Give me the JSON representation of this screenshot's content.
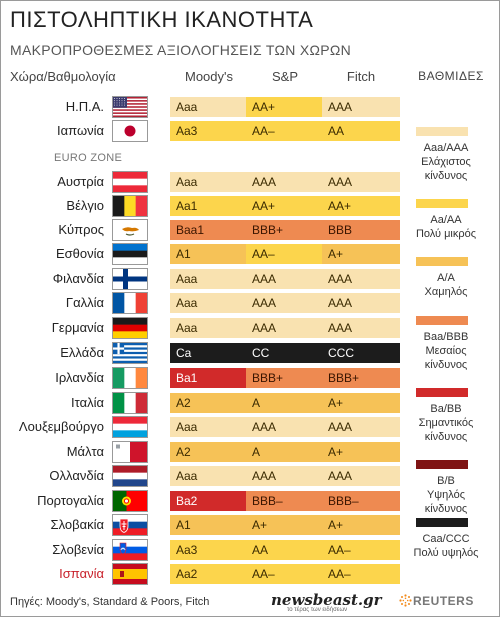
{
  "title": "ΠΙΣΤΟΛΗΠΤΙΚΗ ΙΚΑΝΟΤΗΤΑ",
  "subtitle": "ΜΑΚΡΟΠΡΟΘΕΣΜΕΣ ΑΞΙΟΛΟΓΗΣΕΙΣ ΤΩΝ ΧΩΡΩΝ",
  "headers": {
    "country": "Χώρα/Βαθμολογία",
    "moodys": "Moody's",
    "sp": "S&P",
    "fitch": "Fitch",
    "legend": "ΒΑΘΜΙΔΕΣ"
  },
  "euro_zone_label": "EURO ZONE",
  "colors": {
    "lowest_risk": "#f9e2b0",
    "very_low_risk": "#fcd54c",
    "low_risk": "#f6c257",
    "medium_risk": "#ee8a51",
    "significant_risk": "#d12a2a",
    "high_risk": "#7f1414",
    "very_high_risk": "#1c1c1c"
  },
  "rows": [
    {
      "country": "Η.Π.Α.",
      "flag": "usa-flag",
      "moodys": "Aaa",
      "sp": "AA+",
      "fitch": "AAA",
      "moodys_level": "lowest_risk",
      "sp_level": "very_low_risk",
      "fitch_level": "lowest_risk"
    },
    {
      "country": "Ιαπωνία",
      "flag": "japan-flag",
      "moodys": "Aa3",
      "sp": "AA–",
      "fitch": "AA",
      "moodys_level": "very_low_risk",
      "sp_level": "very_low_risk",
      "fitch_level": "very_low_risk"
    },
    {
      "country": "Αυστρία",
      "flag": "austria-flag",
      "moodys": "Aaa",
      "sp": "AAA",
      "fitch": "AAA",
      "moodys_level": "lowest_risk",
      "sp_level": "lowest_risk",
      "fitch_level": "lowest_risk"
    },
    {
      "country": "Βέλγιο",
      "flag": "belgium-flag",
      "moodys": "Aa1",
      "sp": "AA+",
      "fitch": "AA+",
      "moodys_level": "very_low_risk",
      "sp_level": "very_low_risk",
      "fitch_level": "very_low_risk"
    },
    {
      "country": "Κύπρος",
      "flag": "cyprus-flag",
      "moodys": "Baa1",
      "sp": "BBB+",
      "fitch": "BBB",
      "moodys_level": "medium_risk",
      "sp_level": "medium_risk",
      "fitch_level": "medium_risk"
    },
    {
      "country": "Εσθονία",
      "flag": "estonia-flag",
      "moodys": "A1",
      "sp": "AA–",
      "fitch": "A+",
      "moodys_level": "low_risk",
      "sp_level": "very_low_risk",
      "fitch_level": "low_risk"
    },
    {
      "country": "Φιλανδία",
      "flag": "finland-flag",
      "moodys": "Aaa",
      "sp": "AAA",
      "fitch": "AAA",
      "moodys_level": "lowest_risk",
      "sp_level": "lowest_risk",
      "fitch_level": "lowest_risk"
    },
    {
      "country": "Γαλλία",
      "flag": "france-flag",
      "moodys": "Aaa",
      "sp": "AAA",
      "fitch": "AAA",
      "moodys_level": "lowest_risk",
      "sp_level": "lowest_risk",
      "fitch_level": "lowest_risk"
    },
    {
      "country": "Γερμανία",
      "flag": "germany-flag",
      "moodys": "Aaa",
      "sp": "AAA",
      "fitch": "AAA",
      "moodys_level": "lowest_risk",
      "sp_level": "lowest_risk",
      "fitch_level": "lowest_risk"
    },
    {
      "country": "Ελλάδα",
      "flag": "greece-flag",
      "moodys": "Ca",
      "sp": "CC",
      "fitch": "CCC",
      "moodys_level": "very_high_risk",
      "sp_level": "very_high_risk",
      "fitch_level": "very_high_risk"
    },
    {
      "country": "Ιρλανδία",
      "flag": "ireland-flag",
      "moodys": "Ba1",
      "sp": "BBB+",
      "fitch": "BBB+",
      "moodys_level": "significant_risk",
      "sp_level": "medium_risk",
      "fitch_level": "medium_risk"
    },
    {
      "country": "Ιταλία",
      "flag": "italy-flag",
      "moodys": "A2",
      "sp": "A",
      "fitch": "A+",
      "moodys_level": "low_risk",
      "sp_level": "low_risk",
      "fitch_level": "low_risk"
    },
    {
      "country": "Λουξεμβούργο",
      "flag": "luxembourg-flag",
      "moodys": "Aaa",
      "sp": "AAA",
      "fitch": "AAA",
      "moodys_level": "lowest_risk",
      "sp_level": "lowest_risk",
      "fitch_level": "lowest_risk"
    },
    {
      "country": "Μάλτα",
      "flag": "malta-flag",
      "moodys": "A2",
      "sp": "A",
      "fitch": "A+",
      "moodys_level": "low_risk",
      "sp_level": "low_risk",
      "fitch_level": "low_risk"
    },
    {
      "country": "Ολλανδία",
      "flag": "netherlands-flag",
      "moodys": "Aaa",
      "sp": "AAA",
      "fitch": "AAA",
      "moodys_level": "lowest_risk",
      "sp_level": "lowest_risk",
      "fitch_level": "lowest_risk"
    },
    {
      "country": "Πορτογαλία",
      "flag": "portugal-flag",
      "moodys": "Ba2",
      "sp": "BBB–",
      "fitch": "BBB–",
      "moodys_level": "significant_risk",
      "sp_level": "medium_risk",
      "fitch_level": "medium_risk"
    },
    {
      "country": "Σλοβακία",
      "flag": "slovakia-flag",
      "moodys": "A1",
      "sp": "A+",
      "fitch": "A+",
      "moodys_level": "low_risk",
      "sp_level": "low_risk",
      "fitch_level": "low_risk"
    },
    {
      "country": "Σλοβενία",
      "flag": "slovenia-flag",
      "moodys": "Aa3",
      "sp": "AA",
      "fitch": "AA–",
      "moodys_level": "very_low_risk",
      "sp_level": "very_low_risk",
      "fitch_level": "very_low_risk"
    },
    {
      "country": "Ισπανία",
      "flag": "spain-flag",
      "moodys": "Aa2",
      "sp": "AA–",
      "fitch": "AA–",
      "moodys_level": "very_low_risk",
      "sp_level": "very_low_risk",
      "fitch_level": "very_low_risk",
      "highlight": true
    }
  ],
  "legend": [
    {
      "level": "lowest_risk",
      "label": "Aaa/AAA Ελάχιστος κίνδυνος"
    },
    {
      "level": "very_low_risk",
      "label": "Aa/AA Πολύ μικρός"
    },
    {
      "level": "low_risk",
      "label": "A/A Χαμηλός"
    },
    {
      "level": "medium_risk",
      "label": "Baa/BBB Μεσαίος κίνδυνος"
    },
    {
      "level": "significant_risk",
      "label": "Ba/BB Σημαντικός κίνδυνος"
    },
    {
      "level": "high_risk",
      "label": "B/B Υψηλός κίνδυνος"
    },
    {
      "level": "very_high_risk",
      "label": "Caa/CCC Πολύ υψηλός"
    }
  ],
  "legend_lines": [
    [
      "Aaa/AAA",
      "Ελάχιστος",
      "κίνδυνος"
    ],
    [
      "Aa/AA",
      "Πολύ μικρός"
    ],
    [
      "A/A",
      "Χαμηλός"
    ],
    [
      "Baa/BBB",
      "Μεσαίος",
      "κίνδυνος"
    ],
    [
      "Ba/BB",
      "Σημαντικός",
      "κίνδυνος"
    ],
    [
      "B/B",
      "Υψηλός",
      "κίνδυνος"
    ],
    [
      "Caa/CCC",
      "Πολύ υψηλός"
    ]
  ],
  "footer": {
    "source": "Πηγές: Moody's, Standard & Poors, Fitch",
    "newsbeast": "newsbeast.gr",
    "newsbeast_tagline": "το τέρας των ειδήσεων",
    "reuters": "REUTERS"
  }
}
